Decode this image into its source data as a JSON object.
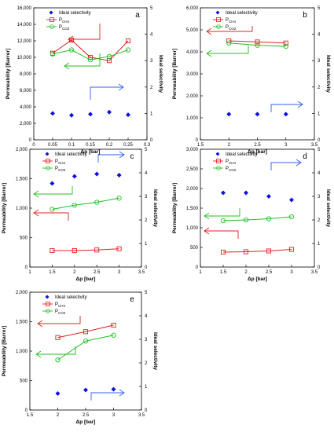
{
  "colors": {
    "ideal": "#1010e0",
    "p1": "#e02020",
    "p2": "#20c020",
    "arrow_blue": "#3060f0",
    "axis": "#000000"
  },
  "chart_data": [
    {
      "panel": "a",
      "type": "scatter+line",
      "xlabel": "Δp [bar]",
      "ylabel": "Permeability [Barrer]",
      "y2label": "Ideal selectivity",
      "xlim": [
        0,
        0.3
      ],
      "xticks": [
        "0",
        "0.05",
        "0.1",
        "0.15",
        "0.2",
        "0.25",
        "0.3"
      ],
      "ylim": [
        0,
        16000
      ],
      "yticks": [
        "0",
        "2,000",
        "4,000",
        "6,000",
        "8,000",
        "10,000",
        "12,000",
        "14,000",
        "16,000"
      ],
      "y2lim": [
        0,
        5
      ],
      "y2ticks": [
        "0",
        "1",
        "2",
        "3",
        "4",
        "5"
      ],
      "legend": [
        "Ideal selectivity",
        "P_CH4",
        "P_CO2"
      ],
      "x": [
        0.05,
        0.1,
        0.15,
        0.2,
        0.25
      ],
      "series": [
        {
          "name": "P_CH4",
          "values": [
            10500,
            12100,
            10000,
            9600,
            12000
          ]
        },
        {
          "name": "P_CO2",
          "values": [
            10400,
            10900,
            9700,
            10100,
            10900
          ]
        },
        {
          "name": "Ideal selectivity",
          "axis": "right",
          "values": [
            1.0,
            0.93,
            0.97,
            1.05,
            0.95
          ]
        }
      ]
    },
    {
      "panel": "b",
      "type": "scatter+line",
      "xlabel": "Δp [bar]",
      "ylabel": "Permeability [Barrer]",
      "y2label": "Ideal selectivity",
      "xlim": [
        1.5,
        3.5
      ],
      "xticks": [
        "1.5",
        "2",
        "2.5",
        "3",
        "3.5"
      ],
      "ylim": [
        0,
        6000
      ],
      "yticks": [
        "0",
        "1,000",
        "2,000",
        "3,000",
        "4,000",
        "5,000",
        "6,000"
      ],
      "y2lim": [
        0,
        5
      ],
      "y2ticks": [
        "0",
        "1",
        "2",
        "3",
        "4",
        "5"
      ],
      "legend": [
        "Ideal selectivity",
        "P_CH4",
        "P_CO2"
      ],
      "x": [
        2,
        2.5,
        3
      ],
      "series": [
        {
          "name": "P_CH4",
          "values": [
            4500,
            4450,
            4400
          ]
        },
        {
          "name": "P_CO2",
          "values": [
            4400,
            4300,
            4250
          ]
        },
        {
          "name": "Ideal selectivity",
          "axis": "right",
          "values": [
            0.97,
            0.97,
            0.97
          ]
        }
      ]
    },
    {
      "panel": "c",
      "type": "scatter+line",
      "xlabel": "Δp [bar]",
      "ylabel": "Permeability [Barrer]",
      "y2label": "Ideal selectivity",
      "xlim": [
        1,
        3.5
      ],
      "xticks": [
        "1",
        "1.5",
        "2",
        "2.5",
        "3",
        "3.5"
      ],
      "ylim": [
        0,
        2000
      ],
      "yticks": [
        "0",
        "500",
        "1,000",
        "1,500",
        "2,000"
      ],
      "y2lim": [
        0,
        5
      ],
      "y2ticks": [
        "0",
        "1",
        "2",
        "3",
        "4",
        "5"
      ],
      "legend": [
        "Ideal selectivity",
        "P_CH4",
        "P_CO2"
      ],
      "x": [
        1.5,
        2,
        2.5,
        3
      ],
      "series": [
        {
          "name": "P_CH4",
          "values": [
            280,
            280,
            290,
            310
          ]
        },
        {
          "name": "P_CO2",
          "values": [
            980,
            1050,
            1100,
            1170
          ]
        },
        {
          "name": "Ideal selectivity",
          "axis": "right",
          "values": [
            3.55,
            3.85,
            3.95,
            3.9
          ]
        }
      ]
    },
    {
      "panel": "d",
      "type": "scatter+line",
      "xlabel": "Δp [bar]",
      "ylabel": "Permeability [Barrer]",
      "y2label": "Ideal selectivity",
      "xlim": [
        1,
        3.5
      ],
      "xticks": [
        "1",
        "1.5",
        "2",
        "2.5",
        "3",
        "3.5"
      ],
      "ylim": [
        0,
        3000
      ],
      "yticks": [
        "0",
        "500",
        "1,000",
        "1,500",
        "2,000",
        "2,500",
        "3,000"
      ],
      "y2lim": [
        0,
        5
      ],
      "y2ticks": [
        "0",
        "1",
        "2",
        "3",
        "4",
        "5"
      ],
      "legend": [
        "Ideal selectivity",
        "P_CH4",
        "P_CO2"
      ],
      "x": [
        1.5,
        2,
        2.5,
        3
      ],
      "series": [
        {
          "name": "P_CH4",
          "values": [
            380,
            390,
            410,
            450
          ]
        },
        {
          "name": "P_CO2",
          "values": [
            1180,
            1200,
            1230,
            1280
          ]
        },
        {
          "name": "Ideal selectivity",
          "axis": "right",
          "values": [
            3.15,
            3.15,
            3.0,
            2.85
          ]
        }
      ]
    },
    {
      "panel": "e",
      "type": "scatter+line",
      "xlabel": "Δp [bar]",
      "ylabel": "Permeability [Barrer]",
      "y2label": "Ideal selectivity",
      "xlim": [
        1.5,
        3.5
      ],
      "xticks": [
        "1.5",
        "2",
        "2.5",
        "3",
        "3.5"
      ],
      "ylim": [
        0,
        2000
      ],
      "yticks": [
        "0",
        "500",
        "1,000",
        "1,500",
        "2,000"
      ],
      "y2lim": [
        0,
        5
      ],
      "y2ticks": [
        "0",
        "1",
        "2",
        "3",
        "4",
        "5"
      ],
      "legend": [
        "Ideal selectivity",
        "P_CH4",
        "P_CO2"
      ],
      "x": [
        2,
        2.5,
        3
      ],
      "series": [
        {
          "name": "P_CH4",
          "values": [
            1230,
            1330,
            1440
          ]
        },
        {
          "name": "P_CO2",
          "values": [
            850,
            1170,
            1270
          ]
        },
        {
          "name": "Ideal selectivity",
          "axis": "right",
          "values": [
            0.7,
            0.85,
            0.88
          ]
        }
      ]
    }
  ]
}
